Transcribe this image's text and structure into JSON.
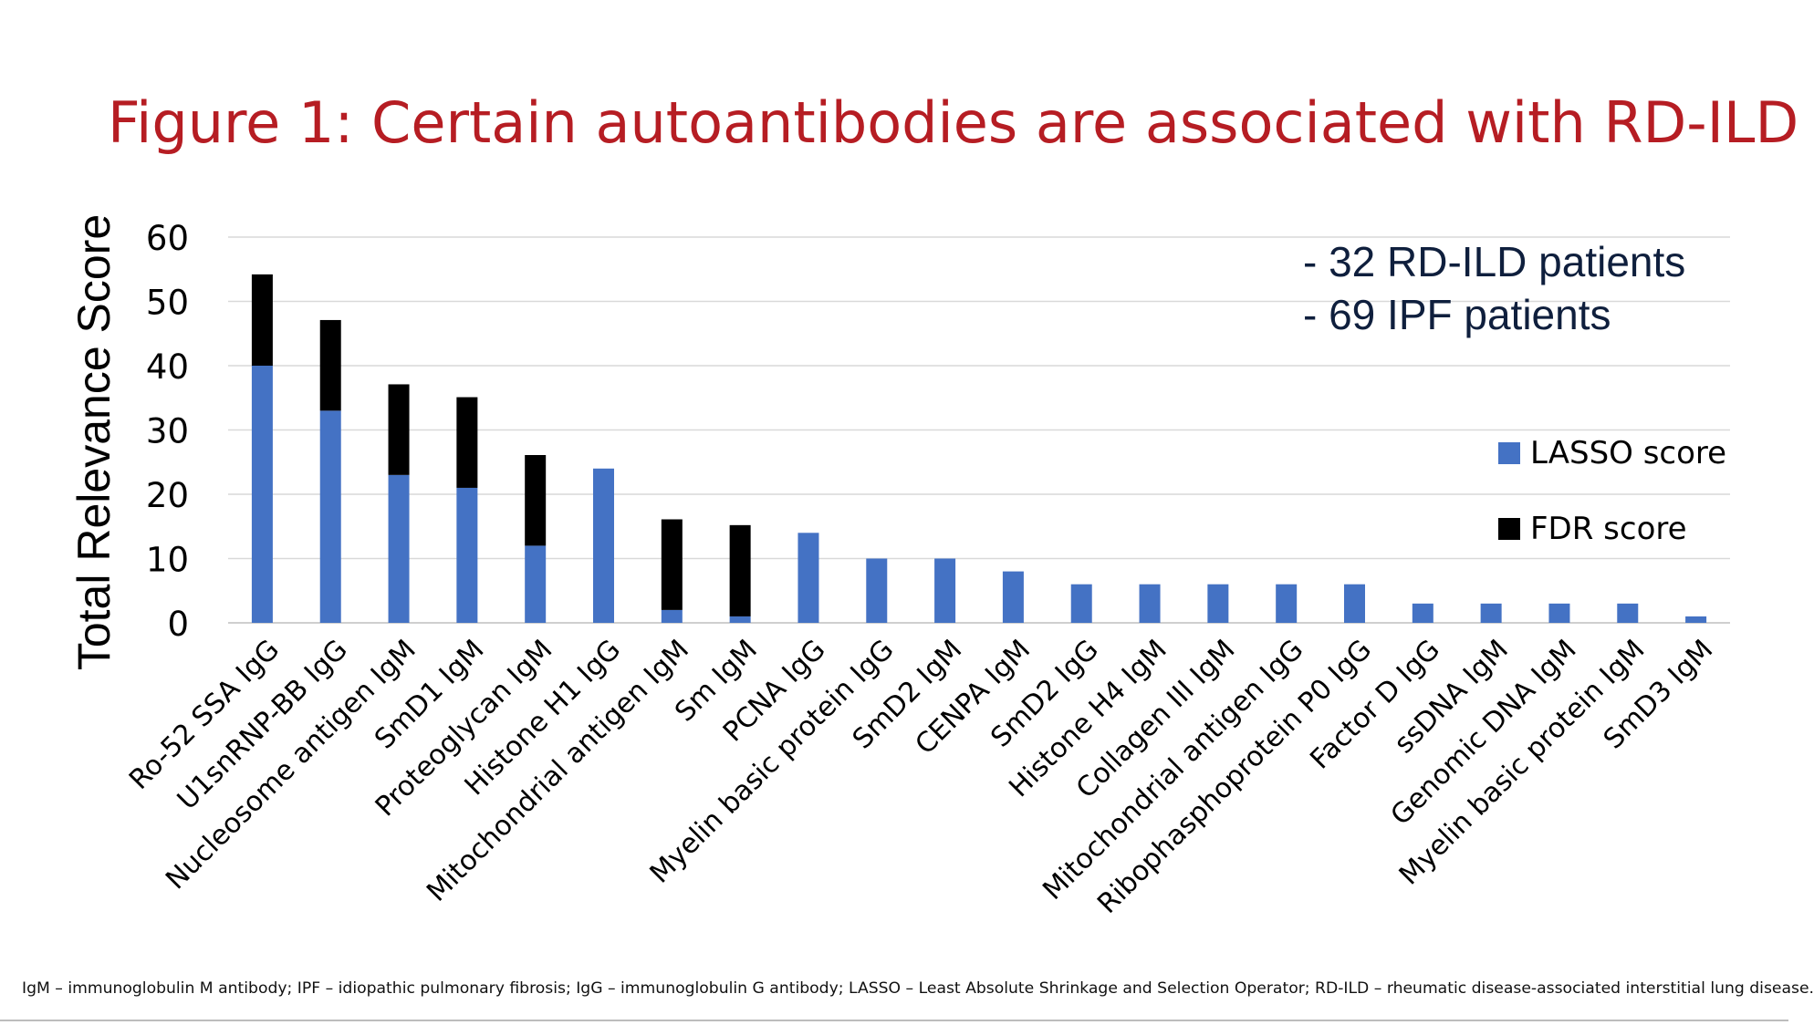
{
  "title": "Figure 1: Certain autoantibodies are associated with RD-ILD",
  "annotations": [
    "- 32 RD-ILD patients",
    "- 69 IPF patients"
  ],
  "footnote": "IgM – immunoglobulin M antibody; IPF – idiopathic pulmonary fibrosis; IgG – immunoglobulin G antibody; LASSO – Least Absolute Shrinkage and Selection Operator; RD-ILD – rheumatic disease-associated interstitial lung disease.",
  "colors": {
    "lasso": "#4472c4",
    "fdr": "#000000",
    "title": "#b61d23",
    "grid": "#d9d9d9"
  },
  "chart_data": {
    "type": "bar",
    "stacked": true,
    "title": "",
    "xlabel": "",
    "ylabel": "Total Relevance Score",
    "ylim": [
      0,
      60
    ],
    "yticks": [
      0,
      10,
      20,
      30,
      40,
      50,
      60
    ],
    "grid": true,
    "legend_position": "right",
    "categories": [
      "Ro-52 SSA IgG",
      "U1snRNP-BB IgG",
      "Nucleosome antigen IgM",
      "SmD1 IgM",
      "Proteoglycan IgM",
      "Histone H1 IgG",
      "Mitochondrial antigen IgM",
      "Sm IgM",
      "PCNA IgG",
      "Myelin basic protein IgG",
      "SmD2 IgM",
      "CENPA IgM",
      "SmD2 IgG",
      "Histone H4 IgM",
      "Collagen III IgM",
      "Mitochondrial antigen IgG",
      "Ribophasphoprotein P0 IgG",
      "Factor D IgG",
      "ssDNA IgM",
      "Genomic DNA IgM",
      "Myelin basic protein IgM",
      "SmD3 IgM"
    ],
    "series": [
      {
        "name": "LASSO score",
        "color": "#4472c4",
        "values": [
          40,
          33,
          23,
          21,
          12,
          24,
          2,
          1,
          14,
          10,
          10,
          8,
          6,
          6,
          6,
          6,
          6,
          3,
          3,
          3,
          3,
          1
        ]
      },
      {
        "name": "FDR score",
        "color": "#000000",
        "values": [
          14.2,
          14.1,
          14.1,
          14.1,
          14.1,
          0,
          14.1,
          14.2,
          0,
          0,
          0,
          0,
          0,
          0,
          0,
          0,
          0,
          0,
          0,
          0,
          0,
          0
        ]
      }
    ]
  }
}
